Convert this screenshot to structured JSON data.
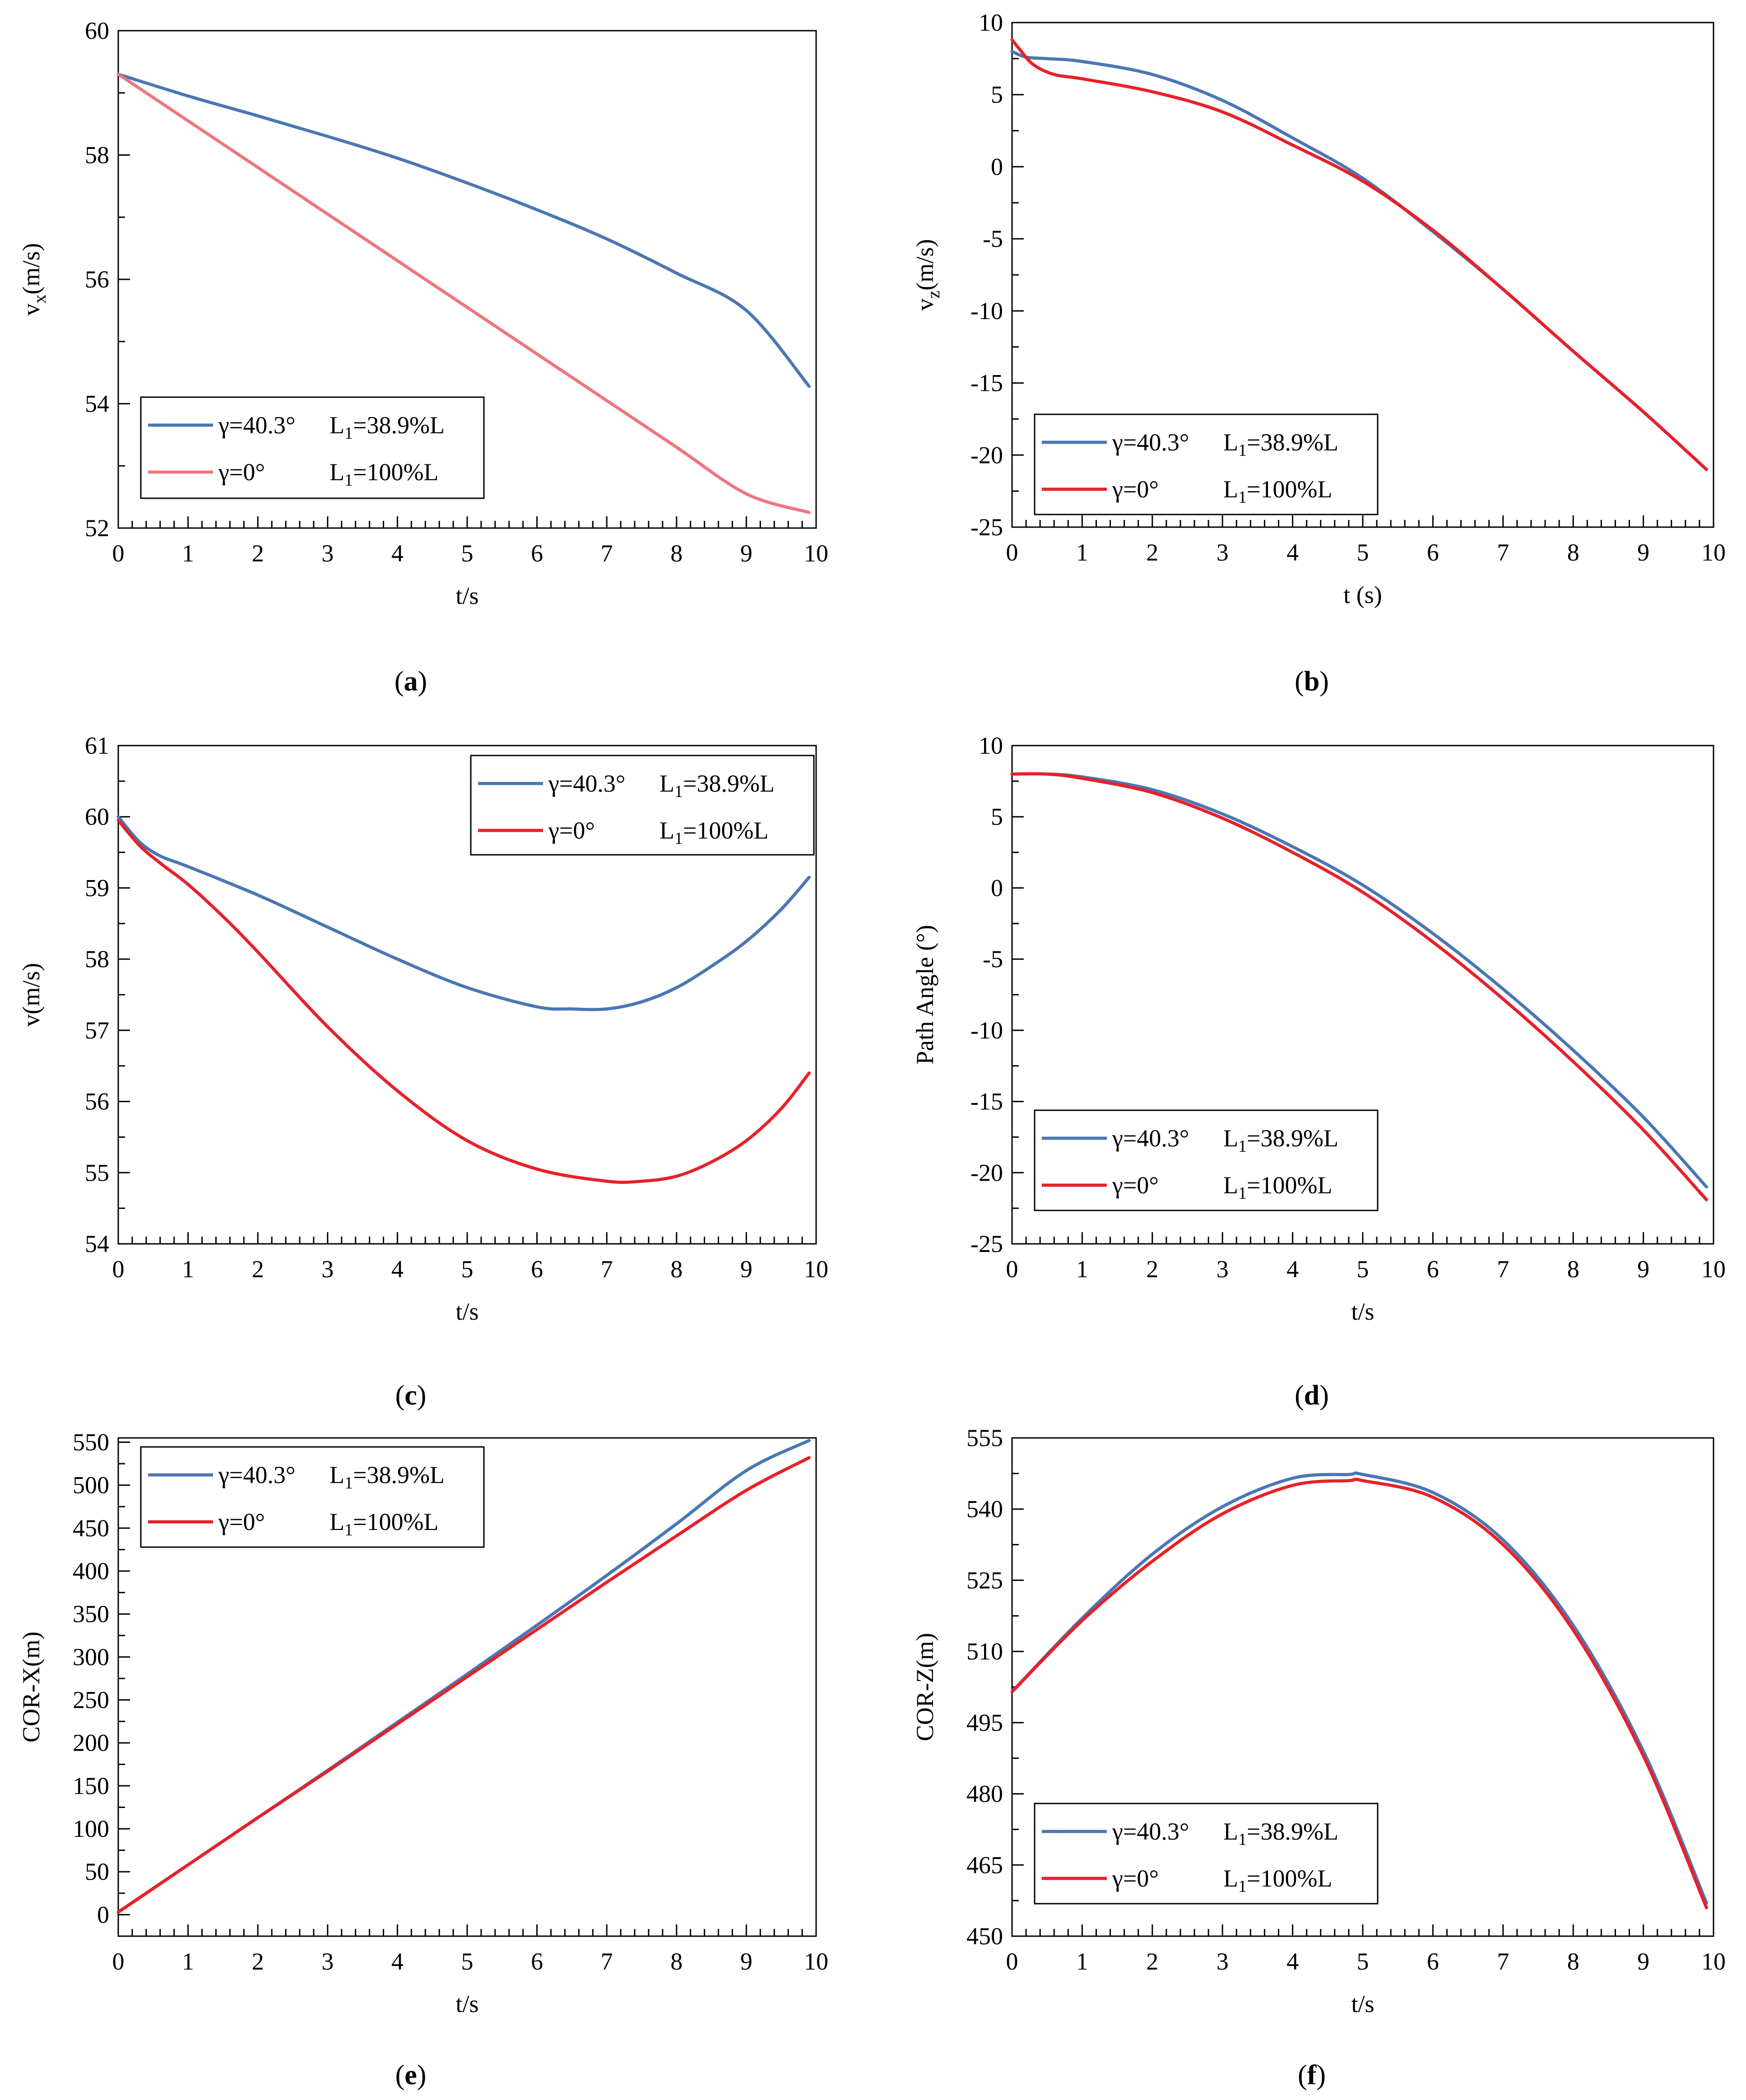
{
  "figure": {
    "series_styles": {
      "blue": "#4a77b4",
      "red": "#e8212a",
      "pink": "#ef7580",
      "axis": "#000000",
      "legend_border": "#000000"
    }
  },
  "chart_data": [
    {
      "type": "line",
      "panel_label": "a",
      "xlabel": "t/s",
      "ylabel_main": "v",
      "ylabel_sub": "x",
      "ylabel_rest": "(m/s)",
      "xlim": [
        0,
        10
      ],
      "ylim": [
        52,
        60
      ],
      "xticks": [
        0,
        1,
        2,
        3,
        4,
        5,
        6,
        7,
        8,
        9,
        10
      ],
      "yticks": [
        52,
        54,
        56,
        58,
        60
      ],
      "legend_position": "bottom-left",
      "series": [
        {
          "name": "γ=40.3°",
          "legend_l1": "38.9%L",
          "color_key": "blue",
          "x": [
            0,
            1,
            2,
            3,
            4,
            5,
            6,
            7,
            8,
            9,
            9.9
          ],
          "values": [
            59.3,
            58.95,
            58.63,
            58.3,
            57.95,
            57.55,
            57.12,
            56.65,
            56.1,
            55.5,
            54.28
          ]
        },
        {
          "name": "γ=0°",
          "legend_l1": "100%L",
          "color_key": "pink",
          "x": [
            0,
            1,
            2,
            3,
            4,
            5,
            6,
            7,
            8,
            9,
            9.9
          ],
          "values": [
            59.3,
            58.55,
            57.8,
            57.05,
            56.3,
            55.55,
            54.8,
            54.05,
            53.3,
            52.55,
            52.25
          ]
        }
      ]
    },
    {
      "type": "line",
      "panel_label": "b",
      "xlabel": "t (s)",
      "ylabel_main": "v",
      "ylabel_sub": "z",
      "ylabel_rest": "(m/s)",
      "xlim": [
        0,
        10
      ],
      "ylim": [
        -25,
        10
      ],
      "xticks": [
        0,
        1,
        2,
        3,
        4,
        5,
        6,
        7,
        8,
        9,
        10
      ],
      "yticks": [
        -25,
        -20,
        -15,
        -10,
        -5,
        0,
        5,
        10
      ],
      "legend_position": "bottom-left",
      "series": [
        {
          "name": "γ=40.3°",
          "legend_l1": "38.9%L",
          "color_key": "blue",
          "x": [
            0,
            0.2,
            0.5,
            1,
            2,
            3,
            4,
            5,
            6,
            7,
            8,
            9,
            9.9
          ],
          "values": [
            8.0,
            7.6,
            7.5,
            7.3,
            6.4,
            4.6,
            2.0,
            -0.8,
            -4.5,
            -8.5,
            -12.8,
            -17.0,
            -21.0
          ]
        },
        {
          "name": "γ=0°",
          "legend_l1": "100%L",
          "color_key": "red",
          "x": [
            0,
            0.1,
            0.3,
            0.6,
            1,
            2,
            3,
            4,
            5,
            6,
            7,
            8,
            9,
            9.9
          ],
          "values": [
            8.8,
            8.2,
            7.1,
            6.4,
            6.1,
            5.2,
            3.8,
            1.5,
            -1.0,
            -4.4,
            -8.5,
            -12.8,
            -17.0,
            -21.0
          ]
        }
      ]
    },
    {
      "type": "line",
      "panel_label": "c",
      "xlabel": "t/s",
      "ylabel_main": "v(m/s)",
      "ylabel_sub": "",
      "ylabel_rest": "",
      "xlim": [
        0,
        10
      ],
      "ylim": [
        54,
        61
      ],
      "xticks": [
        0,
        1,
        2,
        3,
        4,
        5,
        6,
        7,
        8,
        9,
        10
      ],
      "yticks": [
        54,
        55,
        56,
        57,
        58,
        59,
        60,
        61
      ],
      "legend_position": "top-right",
      "series": [
        {
          "name": "γ=40.3°",
          "legend_l1": "38.9%L",
          "color_key": "blue",
          "x": [
            0,
            0.3,
            0.6,
            1,
            2,
            3,
            4,
            5,
            6,
            6.5,
            7,
            7.5,
            8,
            8.5,
            9,
            9.5,
            9.9
          ],
          "values": [
            60.0,
            59.65,
            59.45,
            59.3,
            58.9,
            58.45,
            58.0,
            57.6,
            57.33,
            57.3,
            57.3,
            57.4,
            57.6,
            57.9,
            58.25,
            58.7,
            59.15
          ]
        },
        {
          "name": "γ=0°",
          "legend_l1": "100%L",
          "color_key": "red",
          "x": [
            0,
            0.3,
            0.6,
            1,
            1.5,
            2,
            3,
            4,
            5,
            6,
            7,
            7.5,
            8,
            8.5,
            9,
            9.5,
            9.9
          ],
          "values": [
            59.95,
            59.6,
            59.35,
            59.05,
            58.6,
            58.1,
            57.05,
            56.15,
            55.45,
            55.05,
            54.88,
            54.88,
            54.95,
            55.15,
            55.45,
            55.9,
            56.4
          ]
        }
      ]
    },
    {
      "type": "line",
      "panel_label": "d",
      "xlabel": "t/s",
      "ylabel_main": "Path Angle (°)",
      "ylabel_sub": "",
      "ylabel_rest": "",
      "xlim": [
        0,
        10
      ],
      "ylim": [
        -25,
        10
      ],
      "xticks": [
        0,
        1,
        2,
        3,
        4,
        5,
        6,
        7,
        8,
        9,
        10
      ],
      "yticks": [
        -25,
        -20,
        -15,
        -10,
        -5,
        0,
        5,
        10
      ],
      "legend_position": "bottom-left",
      "series": [
        {
          "name": "γ=40.3°",
          "legend_l1": "38.9%L",
          "color_key": "blue",
          "x": [
            0,
            0.5,
            1,
            2,
            3,
            4,
            5,
            6,
            7,
            8,
            9,
            9.9
          ],
          "values": [
            8.0,
            8.0,
            7.8,
            6.9,
            5.2,
            2.9,
            0.2,
            -3.2,
            -7.1,
            -11.4,
            -16.1,
            -21.0
          ]
        },
        {
          "name": "γ=0°",
          "legend_l1": "100%L",
          "color_key": "red",
          "x": [
            0,
            0.5,
            1,
            2,
            3,
            4,
            5,
            6,
            7,
            8,
            9,
            9.9
          ],
          "values": [
            8.0,
            8.0,
            7.7,
            6.7,
            4.9,
            2.5,
            -0.3,
            -3.8,
            -7.8,
            -12.2,
            -17.0,
            -21.9
          ]
        }
      ]
    },
    {
      "type": "line",
      "panel_label": "e",
      "xlabel": "t/s",
      "ylabel_main": "COR-X(m)",
      "ylabel_sub": "",
      "ylabel_rest": "",
      "xlim": [
        0,
        10
      ],
      "ylim": [
        -25,
        555
      ],
      "xticks": [
        0,
        1,
        2,
        3,
        4,
        5,
        6,
        7,
        8,
        9,
        10
      ],
      "yticks": [
        0,
        50,
        100,
        150,
        200,
        250,
        300,
        350,
        400,
        450,
        500,
        550
      ],
      "legend_position": "top-left",
      "series": [
        {
          "name": "γ=40.3°",
          "legend_l1": "38.9%L",
          "color_key": "blue",
          "x": [
            0,
            1,
            2,
            3,
            4,
            5,
            6,
            7,
            8,
            9,
            9.9
          ],
          "values": [
            3,
            58,
            113,
            168,
            224,
            280,
            337,
            395,
            455,
            517,
            552
          ]
        },
        {
          "name": "γ=0°",
          "legend_l1": "100%L",
          "color_key": "red",
          "x": [
            0,
            1,
            2,
            3,
            4,
            5,
            6,
            7,
            8,
            9,
            9.9
          ],
          "values": [
            3,
            58,
            113,
            167,
            222,
            277,
            332,
            387,
            441,
            494,
            532
          ]
        }
      ]
    },
    {
      "type": "line",
      "panel_label": "f",
      "xlabel": "t/s",
      "ylabel_main": "COR-Z(m)",
      "ylabel_sub": "",
      "ylabel_rest": "",
      "xlim": [
        0,
        10
      ],
      "ylim": [
        450,
        555
      ],
      "xticks": [
        0,
        1,
        2,
        3,
        4,
        5,
        6,
        7,
        8,
        9,
        10
      ],
      "yticks": [
        450,
        465,
        480,
        495,
        510,
        525,
        540,
        555
      ],
      "legend_position": "bottom-left",
      "series": [
        {
          "name": "γ=40.3°",
          "legend_l1": "38.9%L",
          "color_key": "blue",
          "x": [
            0,
            1,
            2,
            3,
            4,
            4.8,
            5,
            6,
            7,
            8,
            9,
            9.9
          ],
          "values": [
            501.5,
            517.0,
            530.5,
            540.5,
            546.5,
            547.3,
            547.3,
            543.5,
            533.5,
            515.5,
            489.0,
            457.0
          ]
        },
        {
          "name": "γ=0°",
          "legend_l1": "100%L",
          "color_key": "red",
          "x": [
            0,
            1,
            2,
            3,
            4,
            4.8,
            5,
            6,
            7,
            8,
            9,
            9.9
          ],
          "values": [
            501.5,
            516.5,
            529.0,
            539.0,
            545.0,
            546.0,
            546.0,
            542.5,
            532.5,
            514.5,
            488.0,
            456.0
          ]
        }
      ]
    }
  ]
}
